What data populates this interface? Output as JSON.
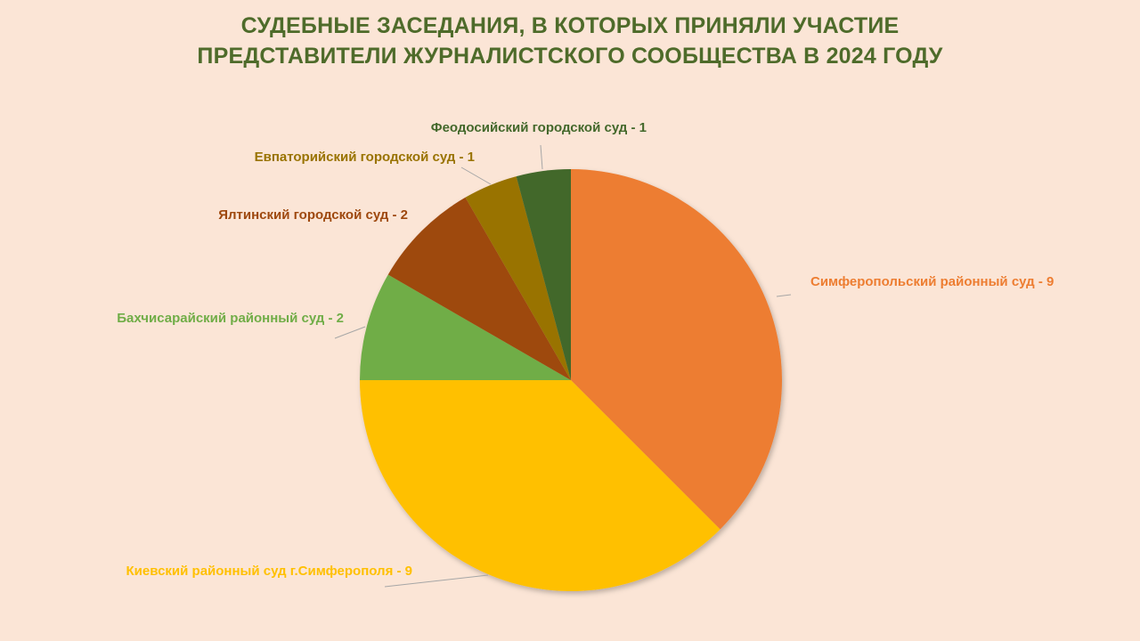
{
  "chart_data": {
    "type": "pie",
    "title_lines": [
      "СУДЕБНЫЕ ЗАСЕДАНИЯ, В КОТОРЫХ ПРИНЯЛИ УЧАСТИЕ",
      "ПРЕДСТАВИТЕЛИ ЖУРНАЛИСТСКОГО СООБЩЕСТВА В 2024 ГОДУ"
    ],
    "slices": [
      {
        "label": "Симферопольский районный суд",
        "value": 9,
        "color": "#ED7D31",
        "data_label": "Симферопольский районный суд - 9"
      },
      {
        "label": "Киевский районный суд г.Симферополя",
        "value": 9,
        "color": "#FFC000",
        "data_label": "Киевский районный суд г.Симферополя - 9"
      },
      {
        "label": "Бахчисарайский районный суд",
        "value": 2,
        "color": "#70AD47",
        "data_label": "Бахчисарайский районный суд - 2"
      },
      {
        "label": "Ялтинский городской суд",
        "value": 2,
        "color": "#9E480E",
        "data_label": "Ялтинский городской суд - 2"
      },
      {
        "label": "Евпаторийский городской суд",
        "value": 1,
        "color": "#997300",
        "data_label": "Евпаторийский городской суд - 1"
      },
      {
        "label": "Феодосийский городской суд",
        "value": 1,
        "color": "#43682B",
        "data_label": "Феодосийский городской суд - 1"
      }
    ],
    "start_angle": "12 o'clock",
    "direction": "clockwise",
    "background": "#FBE5D6",
    "title_color": "#4E6B2A"
  }
}
